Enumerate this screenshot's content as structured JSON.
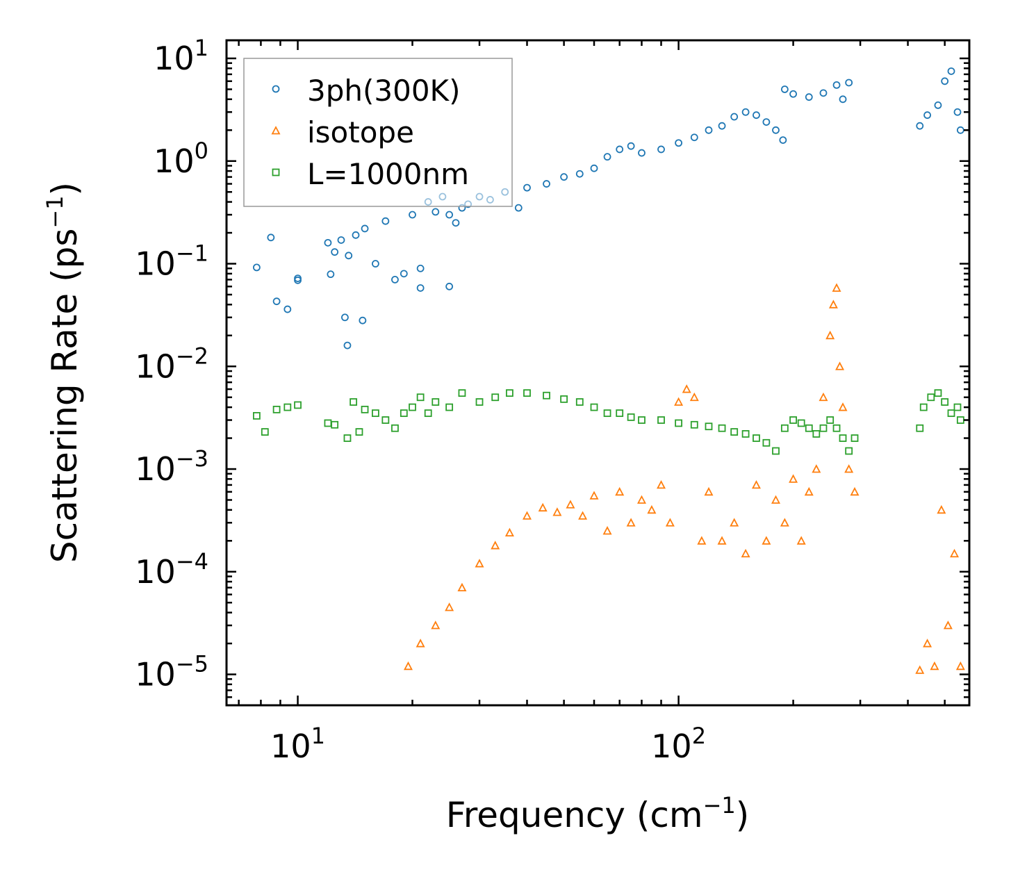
{
  "chart_data": {
    "type": "scatter",
    "title": "",
    "xlabel": "Frequency",
    "xlabel_unit": "(cm",
    "xlabel_unit_exp": "−1",
    "xlabel_unit_close": ")",
    "ylabel": "Scattering Rate",
    "ylabel_unit": "(ps",
    "ylabel_unit_exp": "−1",
    "ylabel_unit_close": ")",
    "xscale": "log",
    "yscale": "log",
    "xlim": [
      6.5,
      580
    ],
    "ylim": [
      5e-06,
      15
    ],
    "x_ticks": [
      {
        "value": 10,
        "base": "10",
        "exp": "1"
      },
      {
        "value": 100,
        "base": "10",
        "exp": "2"
      }
    ],
    "y_ticks": [
      {
        "value": 10,
        "base": "10",
        "exp": "1"
      },
      {
        "value": 1,
        "base": "10",
        "exp": "0"
      },
      {
        "value": 0.1,
        "base": "10",
        "exp": "−1"
      },
      {
        "value": 0.01,
        "base": "10",
        "exp": "−2"
      },
      {
        "value": 0.001,
        "base": "10",
        "exp": "−3"
      },
      {
        "value": 0.0001,
        "base": "10",
        "exp": "−4"
      },
      {
        "value": 1e-05,
        "base": "10",
        "exp": "−5"
      }
    ],
    "legend_position": "top-left",
    "series": [
      {
        "name": "3ph(300K)",
        "marker": "circle",
        "color": "#1f77b4",
        "x": [
          7.8,
          8.5,
          8.8,
          9.4,
          10,
          10,
          12,
          12.2,
          12.5,
          13,
          13.3,
          13.5,
          13.6,
          14.2,
          14.8,
          15,
          16,
          17,
          18,
          19,
          20,
          21,
          21,
          22,
          23,
          24,
          25,
          25,
          26,
          27,
          28,
          30,
          32,
          35,
          38,
          40,
          45,
          50,
          55,
          60,
          65,
          70,
          75,
          80,
          90,
          100,
          110,
          120,
          130,
          140,
          150,
          160,
          170,
          180,
          188,
          190,
          200,
          220,
          240,
          260,
          270,
          280,
          430,
          450,
          480,
          500,
          520,
          540,
          550
        ],
        "y": [
          0.092,
          0.18,
          0.043,
          0.036,
          0.072,
          0.069,
          0.16,
          0.079,
          0.13,
          0.17,
          0.03,
          0.016,
          0.12,
          0.19,
          0.028,
          0.22,
          0.1,
          0.26,
          0.07,
          0.08,
          0.3,
          0.09,
          0.058,
          0.4,
          0.32,
          0.45,
          0.06,
          0.3,
          0.25,
          0.35,
          0.38,
          0.45,
          0.42,
          0.5,
          0.35,
          0.55,
          0.6,
          0.7,
          0.75,
          0.85,
          1.1,
          1.3,
          1.4,
          1.2,
          1.3,
          1.5,
          1.7,
          2.0,
          2.2,
          2.7,
          3.0,
          2.8,
          2.4,
          2.0,
          1.6,
          5.0,
          4.5,
          4.2,
          4.6,
          5.5,
          4.0,
          5.8,
          2.2,
          2.8,
          3.5,
          6.0,
          7.5,
          3.0,
          2.0
        ]
      },
      {
        "name": "isotope",
        "marker": "triangle",
        "color": "#ff7f0e",
        "x": [
          19.5,
          21,
          23,
          25,
          27,
          30,
          33,
          36,
          40,
          44,
          48,
          52,
          56,
          60,
          65,
          70,
          75,
          80,
          85,
          90,
          95,
          100,
          105,
          110,
          115,
          120,
          130,
          140,
          150,
          160,
          170,
          180,
          190,
          200,
          210,
          220,
          230,
          240,
          250,
          255,
          260,
          265,
          270,
          280,
          290,
          430,
          450,
          470,
          490,
          510,
          530,
          550
        ],
        "y": [
          1.2e-05,
          2e-05,
          3e-05,
          4.5e-05,
          7e-05,
          0.00012,
          0.00018,
          0.00024,
          0.00035,
          0.00042,
          0.00038,
          0.00045,
          0.00035,
          0.00055,
          0.00025,
          0.0006,
          0.0003,
          0.0005,
          0.0004,
          0.0007,
          0.0003,
          0.0045,
          0.006,
          0.005,
          0.0002,
          0.0006,
          0.0002,
          0.0003,
          0.00015,
          0.0007,
          0.0002,
          0.0005,
          0.0003,
          0.0008,
          0.0002,
          0.0006,
          0.001,
          0.005,
          0.02,
          0.04,
          0.058,
          0.01,
          0.004,
          0.001,
          0.0006,
          1.1e-05,
          2e-05,
          1.2e-05,
          0.0004,
          3e-05,
          0.00015,
          1.2e-05
        ]
      },
      {
        "name": "L=1000nm",
        "marker": "square",
        "color": "#2ca02c",
        "x": [
          7.8,
          8.2,
          8.8,
          9.4,
          10,
          12,
          12.5,
          13.5,
          14,
          14.5,
          15,
          16,
          17,
          18,
          19,
          20,
          21,
          22,
          23,
          25,
          27,
          30,
          33,
          36,
          40,
          45,
          50,
          55,
          60,
          65,
          70,
          75,
          80,
          90,
          100,
          110,
          120,
          130,
          140,
          150,
          160,
          170,
          180,
          190,
          200,
          210,
          220,
          230,
          240,
          250,
          260,
          270,
          280,
          290,
          430,
          440,
          460,
          480,
          500,
          520,
          540,
          550
        ],
        "y": [
          0.0033,
          0.0023,
          0.0038,
          0.004,
          0.0042,
          0.0028,
          0.0027,
          0.002,
          0.0045,
          0.0023,
          0.0038,
          0.0035,
          0.003,
          0.0025,
          0.0035,
          0.004,
          0.005,
          0.0035,
          0.0045,
          0.004,
          0.0055,
          0.0045,
          0.005,
          0.0055,
          0.0055,
          0.0052,
          0.0048,
          0.0045,
          0.004,
          0.0035,
          0.0035,
          0.0032,
          0.003,
          0.003,
          0.0028,
          0.0027,
          0.0026,
          0.0025,
          0.0023,
          0.0022,
          0.002,
          0.0018,
          0.0015,
          0.0025,
          0.003,
          0.0028,
          0.0025,
          0.0022,
          0.0025,
          0.003,
          0.0025,
          0.002,
          0.0015,
          0.002,
          0.0025,
          0.004,
          0.005,
          0.0055,
          0.0045,
          0.0035,
          0.004,
          0.003
        ]
      }
    ]
  }
}
